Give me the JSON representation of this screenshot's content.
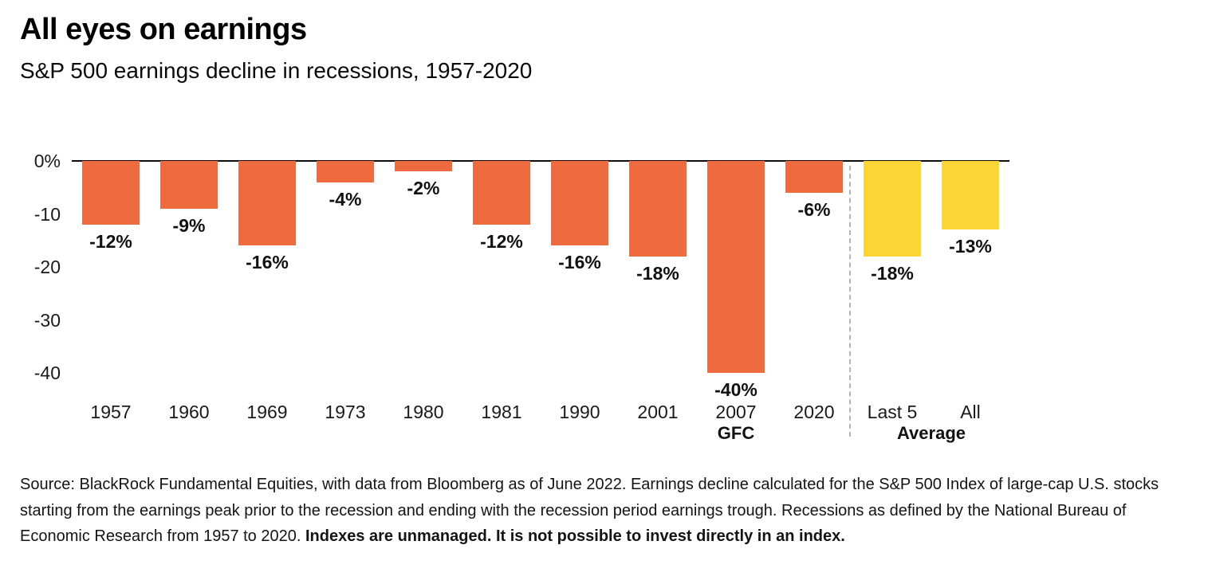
{
  "header": {
    "title": "All eyes on earnings",
    "subtitle": "S&P 500 earnings decline in recessions, 1957-2020"
  },
  "chart_data": {
    "type": "bar",
    "title": "All eyes on earnings",
    "subtitle": "S&P 500 earnings decline in recessions, 1957-2020",
    "categories": [
      "1957",
      "1960",
      "1969",
      "1973",
      "1980",
      "1981",
      "1990",
      "2001",
      "2007",
      "2020",
      "Last 5",
      "All"
    ],
    "values": [
      -12,
      -9,
      -16,
      -4,
      -2,
      -12,
      -16,
      -18,
      -40,
      -6,
      -18,
      -13
    ],
    "bar_labels": [
      "-12%",
      "-9%",
      "-16%",
      "-4%",
      "-2%",
      "-12%",
      "-16%",
      "-18%",
      "-40%",
      "-6%",
      "-18%",
      "-13%"
    ],
    "sub_labels": [
      "",
      "",
      "",
      "",
      "",
      "",
      "",
      "",
      "GFC",
      "",
      "",
      ""
    ],
    "group_label": "Average",
    "colors": [
      "#ED6B3E",
      "#ED6B3E",
      "#ED6B3E",
      "#ED6B3E",
      "#ED6B3E",
      "#ED6B3E",
      "#ED6B3E",
      "#ED6B3E",
      "#ED6B3E",
      "#ED6B3E",
      "#FBD435",
      "#FBD435"
    ],
    "recession_color": "#ED6B3E",
    "average_color": "#FBD435",
    "xlabel": "",
    "ylabel": "",
    "y_ticks": [
      {
        "label": "0%",
        "value": 0
      },
      {
        "label": "-10",
        "value": -10
      },
      {
        "label": "-20",
        "value": -20
      },
      {
        "label": "-30",
        "value": -30
      },
      {
        "label": "-40",
        "value": -40
      }
    ],
    "ylim": [
      -45,
      0
    ],
    "grid": false,
    "legend": "none",
    "divider_after_index": 9
  },
  "source": {
    "text": "Source: BlackRock Fundamental Equities, with data from Bloomberg as of June 2022. Earnings decline calculated for the S&P 500 Index of large-cap U.S. stocks starting from the earnings peak prior to the recession and ending with the recession period earnings trough. Recessions as defined by the National Bureau of Economic Research from 1957 to 2020. ",
    "bold_text": "Indexes are unmanaged. It is not possible to invest directly in an index."
  }
}
